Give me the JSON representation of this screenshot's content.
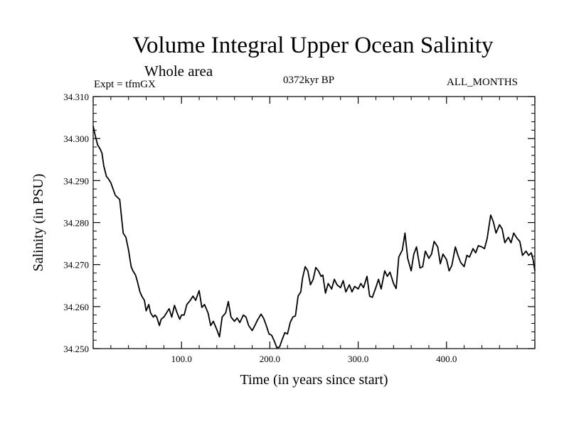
{
  "header": {
    "title": "Volume Integral Upper Ocean Salinity",
    "subtitle": "Whole area",
    "expt": "Expt = tfmGX",
    "period": "0372kyr BP",
    "months": "ALL_MONTHS"
  },
  "chart_data": {
    "type": "line",
    "title": "Volume Integral Upper Ocean Salinity",
    "subtitle": "Whole area",
    "xlabel": "Time (in years since start)",
    "ylabel": "Salinity (in PSU)",
    "xlim": [
      0,
      500
    ],
    "ylim": [
      34.25,
      34.31
    ],
    "x_ticks": [
      100,
      200,
      300,
      400
    ],
    "x_tick_labels": [
      "100.0",
      "200.0",
      "300.0",
      "400.0"
    ],
    "y_ticks": [
      34.25,
      34.26,
      34.27,
      34.28,
      34.29,
      34.3,
      34.31
    ],
    "y_tick_labels": [
      "34.250",
      "34.260",
      "34.270",
      "34.280",
      "34.290",
      "34.300",
      "34.310"
    ],
    "grid": false,
    "line_color": "#000000",
    "series": [
      {
        "x": [
          0,
          2,
          5,
          8,
          10,
          12,
          15,
          17,
          20,
          25,
          30,
          34,
          37,
          40,
          43,
          45,
          48,
          50,
          53,
          55,
          58,
          60,
          63,
          65,
          68,
          70,
          72,
          75,
          77,
          80,
          83,
          86,
          89,
          92,
          95,
          98,
          100,
          103,
          106,
          110,
          113,
          116,
          120,
          123,
          126,
          130,
          133,
          136,
          140,
          143,
          146,
          150,
          153,
          156,
          160,
          163,
          166,
          170,
          173,
          176,
          180,
          183,
          186,
          190,
          193,
          196,
          199,
          202,
          205,
          208,
          211,
          214,
          217,
          220,
          223,
          226,
          229,
          232,
          235,
          237,
          240,
          243,
          246,
          249,
          252,
          255,
          258,
          260,
          263,
          266,
          270,
          273,
          276,
          280,
          283,
          286,
          290,
          293,
          296,
          300,
          303,
          306,
          310,
          313,
          316,
          320,
          323,
          326,
          330,
          333,
          336,
          340,
          343,
          346,
          350,
          353,
          356,
          360,
          363,
          366,
          370,
          373,
          376,
          380,
          383,
          386,
          390,
          393,
          396,
          400,
          403,
          406,
          410,
          413,
          416,
          420,
          423,
          426,
          430,
          433,
          436,
          440,
          443,
          446,
          450,
          453,
          456,
          460,
          463,
          466,
          470,
          473,
          476,
          480,
          483,
          486,
          490,
          493,
          496,
          498,
          500
        ],
        "y": [
          34.303,
          34.301,
          34.2985,
          34.2975,
          34.2965,
          34.2935,
          34.291,
          34.2905,
          34.2895,
          34.2865,
          34.2855,
          34.2775,
          34.2765,
          34.2735,
          34.2695,
          34.2685,
          34.2675,
          34.266,
          34.2635,
          34.2625,
          34.2615,
          34.259,
          34.2605,
          34.2585,
          34.2575,
          34.258,
          34.2575,
          34.2555,
          34.257,
          34.2575,
          34.2585,
          34.2595,
          34.2575,
          34.2603,
          34.2585,
          34.257,
          34.258,
          34.258,
          34.2605,
          34.2615,
          34.2625,
          34.2615,
          34.2638,
          34.2598,
          34.2605,
          34.2585,
          34.2555,
          34.2565,
          34.2545,
          34.2528,
          34.2575,
          34.2585,
          34.2612,
          34.2575,
          34.2565,
          34.2573,
          34.2562,
          34.258,
          34.2575,
          34.2555,
          34.2543,
          34.2555,
          34.2568,
          34.2582,
          34.2572,
          34.2555,
          34.2535,
          34.2532,
          34.2518,
          34.2502,
          34.2504,
          34.2522,
          34.2538,
          34.2535,
          34.2562,
          34.2575,
          34.2578,
          34.2625,
          34.2635,
          34.2668,
          34.2695,
          34.2685,
          34.2652,
          34.2665,
          34.2693,
          34.2685,
          34.2672,
          34.2675,
          34.2632,
          34.2655,
          34.2642,
          34.2665,
          34.2652,
          34.2645,
          34.2662,
          34.2635,
          34.2652,
          34.2635,
          34.2648,
          34.2642,
          34.2655,
          34.2645,
          34.2672,
          34.2625,
          34.2622,
          34.2645,
          34.2665,
          34.2642,
          34.2685,
          34.2672,
          34.2682,
          34.2655,
          34.2643,
          34.2718,
          34.2735,
          34.2775,
          34.2715,
          34.2685,
          34.2725,
          34.2742,
          34.2692,
          34.2695,
          34.2732,
          34.2715,
          34.2725,
          34.2755,
          34.2742,
          34.2702,
          34.2725,
          34.2712,
          34.2685,
          34.2698,
          34.2742,
          34.2722,
          34.2705,
          34.2695,
          34.2722,
          34.2718,
          34.2738,
          34.2728,
          34.2745,
          34.2742,
          34.2738,
          34.2762,
          34.2818,
          34.2802,
          34.2775,
          34.2795,
          34.2785,
          34.2752,
          34.2765,
          34.2752,
          34.2775,
          34.2762,
          34.2755,
          34.2722,
          34.2732,
          34.2722,
          34.2728,
          34.2712,
          34.2685
        ]
      }
    ]
  }
}
